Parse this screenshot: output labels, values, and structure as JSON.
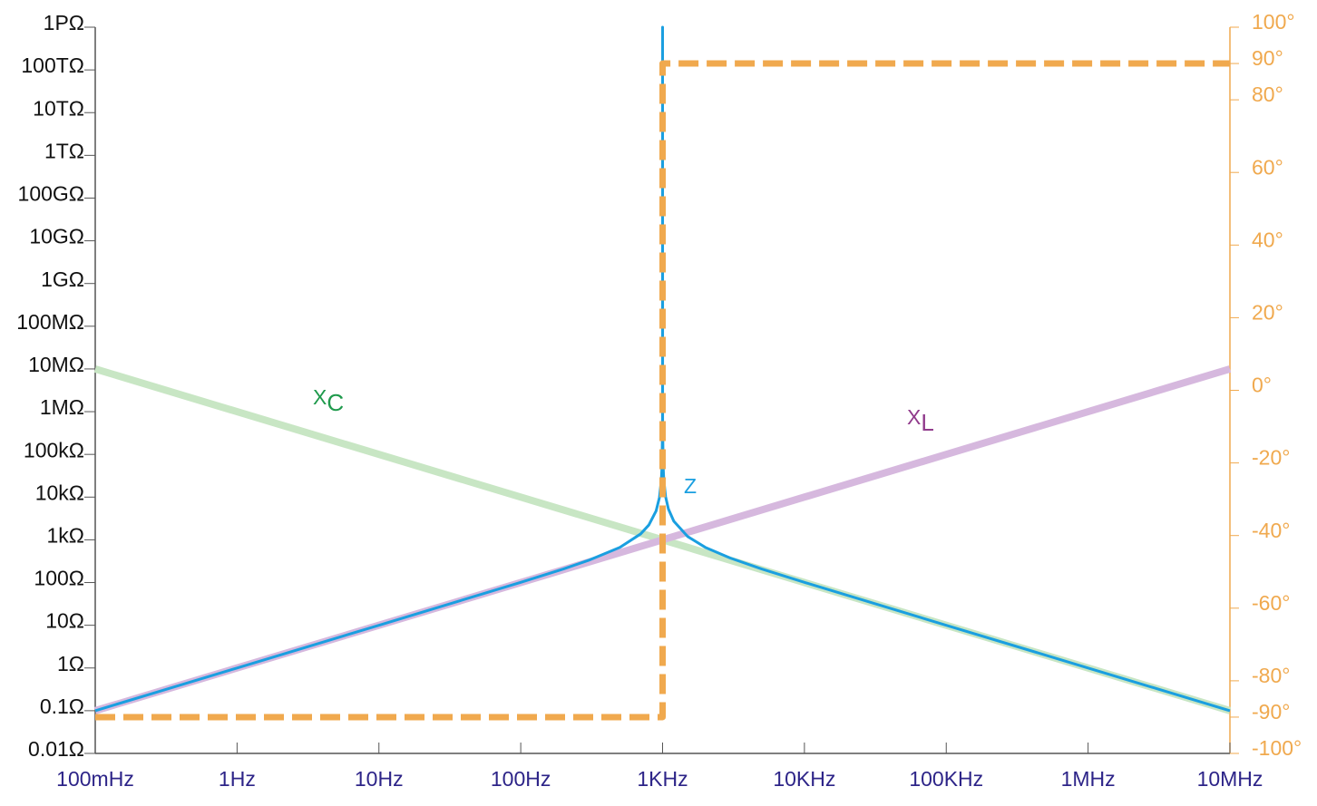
{
  "chart_data": {
    "type": "line",
    "xscale": "log",
    "yscale": "log",
    "xlim": [
      0.1,
      10000000
    ],
    "ylim": [
      0.01,
      1000000000000000
    ],
    "y2lim": [
      -100,
      100
    ],
    "xticks": [
      {
        "value": 0.1,
        "label": "100mHz"
      },
      {
        "value": 1,
        "label": "1Hz"
      },
      {
        "value": 10,
        "label": "10Hz"
      },
      {
        "value": 100,
        "label": "100Hz"
      },
      {
        "value": 1000,
        "label": "1KHz"
      },
      {
        "value": 10000,
        "label": "10KHz"
      },
      {
        "value": 100000,
        "label": "100KHz"
      },
      {
        "value": 1000000,
        "label": "1MHz"
      },
      {
        "value": 10000000,
        "label": "10MHz"
      }
    ],
    "yticks": [
      {
        "value": 1000000000000000,
        "label": "1PΩ"
      },
      {
        "value": 100000000000000,
        "label": "100TΩ"
      },
      {
        "value": 10000000000000,
        "label": "10TΩ"
      },
      {
        "value": 1000000000000,
        "label": "1TΩ"
      },
      {
        "value": 100000000000,
        "label": "100GΩ"
      },
      {
        "value": 10000000000,
        "label": "10GΩ"
      },
      {
        "value": 1000000000,
        "label": "1GΩ"
      },
      {
        "value": 100000000,
        "label": "100MΩ"
      },
      {
        "value": 10000000,
        "label": "10MΩ"
      },
      {
        "value": 1000000,
        "label": "1MΩ"
      },
      {
        "value": 100000,
        "label": "100kΩ"
      },
      {
        "value": 10000,
        "label": "10kΩ"
      },
      {
        "value": 1000,
        "label": "1kΩ"
      },
      {
        "value": 100,
        "label": "100Ω"
      },
      {
        "value": 10,
        "label": "10Ω"
      },
      {
        "value": 1,
        "label": "1Ω"
      },
      {
        "value": 0.1,
        "label": "0.1Ω"
      },
      {
        "value": 0.01,
        "label": "0.01Ω"
      }
    ],
    "y2ticks": [
      {
        "value": 100,
        "label": "100°"
      },
      {
        "value": 90,
        "label": "90°"
      },
      {
        "value": 80,
        "label": "80°"
      },
      {
        "value": 60,
        "label": "60°"
      },
      {
        "value": 40,
        "label": "40°"
      },
      {
        "value": 20,
        "label": "20°"
      },
      {
        "value": 0,
        "label": "0°"
      },
      {
        "value": -20,
        "label": "-20°"
      },
      {
        "value": -40,
        "label": "-40°"
      },
      {
        "value": -60,
        "label": "-60°"
      },
      {
        "value": -80,
        "label": "-80°"
      },
      {
        "value": -90,
        "label": "-90°"
      },
      {
        "value": -100,
        "label": "-100°"
      }
    ],
    "series": [
      {
        "color": "#c8e6c4",
        "width": 8,
        "x": [
          0.1,
          10000000
        ],
        "values": [
          10000000,
          0.1
        ]
      },
      {
        "color": "#d6b8de",
        "width": 8,
        "x": [
          0.1,
          10000000
        ],
        "values": [
          0.1,
          10000000
        ]
      },
      {
        "color": "#1a9fe0",
        "width": 3,
        "x": [
          0.1,
          1,
          10,
          100,
          200,
          300,
          500,
          700,
          800,
          900,
          950,
          980,
          990,
          999,
          1000,
          1001,
          1010,
          1020,
          1050,
          1100,
          1200,
          1500,
          2000,
          3000,
          5000,
          10000,
          100000,
          1000000,
          10000000
        ],
        "values": [
          0.1,
          1,
          10,
          101,
          208,
          330,
          667,
          1373,
          2222,
          4737,
          9744,
          24747,
          49749,
          499750,
          1000000000000000,
          500250,
          50249,
          25248,
          10244,
          5238,
          2727,
          1200,
          667,
          375,
          208,
          101,
          10,
          1,
          0.1
        ]
      },
      {
        "color": "#f0a94e",
        "width": 7,
        "dash": true,
        "axis": "y2",
        "x": [
          0.1,
          1000,
          1000,
          10000000
        ],
        "values": [
          -90,
          -90,
          90,
          90
        ]
      }
    ],
    "annotations": [
      {
        "text": "X",
        "sub": "C",
        "color": "#1f9a4c"
      },
      {
        "text": "X",
        "sub": "L",
        "color": "#913b8c"
      },
      {
        "text": "Z",
        "color": "#1a9fe0"
      }
    ]
  }
}
